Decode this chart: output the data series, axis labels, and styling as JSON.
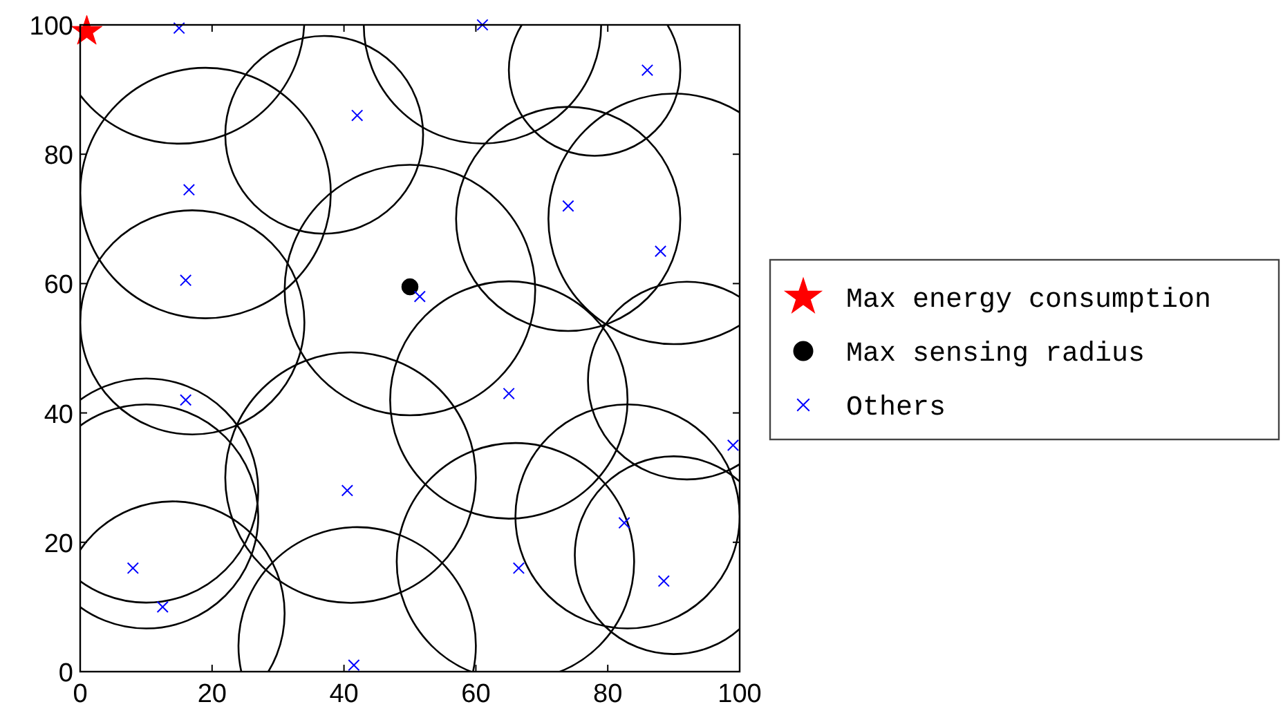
{
  "chart_data": {
    "type": "scatter",
    "xlim": [
      0,
      100
    ],
    "ylim": [
      0,
      100
    ],
    "xticks": [
      0,
      20,
      40,
      60,
      80,
      100
    ],
    "yticks": [
      0,
      20,
      40,
      60,
      80,
      100
    ],
    "grid": false,
    "legend": "right",
    "series": [
      {
        "name": "Max energy consumption",
        "color": "#ff0000",
        "marker": "star",
        "x": [
          1
        ],
        "values": [
          99
        ]
      },
      {
        "name": "Max sensing radius",
        "color": "#000000",
        "marker": "circle",
        "x": [
          50
        ],
        "values": [
          59.5
        ]
      },
      {
        "name": "Others",
        "color": "#0000ff",
        "marker": "cross",
        "x": [
          15,
          42,
          16.5,
          16,
          61,
          86,
          74,
          88,
          51.5,
          16,
          40.5,
          8,
          12.5,
          41.5,
          65,
          99,
          82.5,
          66.5,
          88.5
        ],
        "values": [
          99.5,
          86,
          74.5,
          60.5,
          100,
          93,
          72,
          65,
          58,
          42,
          28,
          16,
          10,
          1,
          43,
          35,
          23,
          16,
          14
        ]
      }
    ]
  }
}
